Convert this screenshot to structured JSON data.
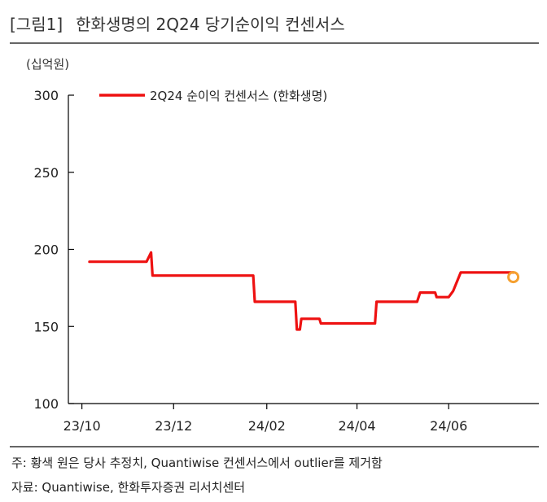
{
  "header": {
    "fig_tag": "[그림1]",
    "title": "한화생명의 2Q24 당기순이익 컨센서스"
  },
  "unit_label": "(십억원)",
  "footer": {
    "note": "주: 황색 원은 당사 추정치, Quantiwise 컨센서스에서 outlier를 제거함",
    "source": "자료: Quantiwise, 한화투자증권 리서치센터"
  },
  "colors": {
    "series": "#ee1111",
    "estimate_marker": "#f5a030",
    "axis": "#000000"
  },
  "chart_data": {
    "type": "line",
    "title": "",
    "xlabel": "",
    "ylabel": "(십억원)",
    "ylim": [
      100,
      300
    ],
    "y_ticks": [
      100,
      150,
      200,
      250,
      300
    ],
    "xlim": [
      "2023-09-22",
      "2024-07-31"
    ],
    "x_ticks": [
      {
        "label": "23/10",
        "date": "2023-10-01"
      },
      {
        "label": "23/12",
        "date": "2023-12-01"
      },
      {
        "label": "24/02",
        "date": "2024-02-01"
      },
      {
        "label": "24/04",
        "date": "2024-04-01"
      },
      {
        "label": "24/06",
        "date": "2024-06-01"
      }
    ],
    "grid": false,
    "legend_position": "top",
    "series": [
      {
        "name": "2Q24 순이익 컨센서스 (한화생명)",
        "points": [
          [
            "2023-10-06",
            192
          ],
          [
            "2023-11-13",
            192
          ],
          [
            "2023-11-16",
            198
          ],
          [
            "2023-11-17",
            183
          ],
          [
            "2024-01-23",
            183
          ],
          [
            "2024-01-24",
            166
          ],
          [
            "2024-02-20",
            166
          ],
          [
            "2024-02-21",
            148
          ],
          [
            "2024-02-23",
            148
          ],
          [
            "2024-02-24",
            155
          ],
          [
            "2024-03-07",
            155
          ],
          [
            "2024-03-08",
            152
          ],
          [
            "2024-04-13",
            152
          ],
          [
            "2024-04-14",
            166
          ],
          [
            "2024-05-11",
            166
          ],
          [
            "2024-05-13",
            172
          ],
          [
            "2024-05-23",
            172
          ],
          [
            "2024-05-24",
            169
          ],
          [
            "2024-06-01",
            169
          ],
          [
            "2024-06-04",
            173
          ],
          [
            "2024-06-09",
            185
          ],
          [
            "2024-07-14",
            185
          ]
        ]
      }
    ],
    "estimate": {
      "date": "2024-07-14",
      "value": 182
    }
  }
}
